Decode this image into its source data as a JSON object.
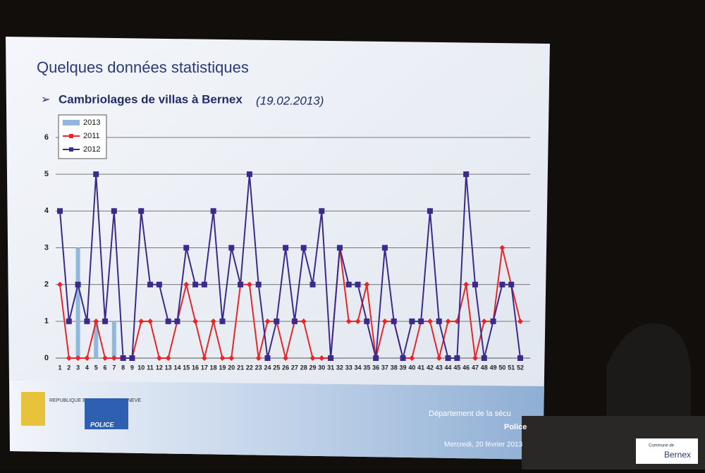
{
  "slide": {
    "heading": "Quelques données statistiques",
    "subtitle": "Cambriolages de villas à Bernex",
    "subtitle_date": "(19.02.2013)",
    "logo_canton": "REPUBLIQUE ET CANTON DE GENEVE",
    "logo_police": "POLICE",
    "footer_department": "Département de la sécu",
    "footer_unit": "Police",
    "footer_date": "Mercredi, 20 février 2013",
    "commune_label": "Commune de",
    "commune_name": "Bernex"
  },
  "chart_data": {
    "type": "line",
    "categories": [
      1,
      2,
      3,
      4,
      5,
      6,
      7,
      8,
      9,
      10,
      11,
      12,
      13,
      14,
      15,
      16,
      17,
      18,
      19,
      20,
      21,
      22,
      23,
      24,
      25,
      26,
      27,
      28,
      29,
      30,
      31,
      32,
      33,
      34,
      35,
      36,
      37,
      38,
      39,
      40,
      41,
      42,
      43,
      44,
      45,
      46,
      47,
      48,
      49,
      50,
      51,
      52
    ],
    "series": [
      {
        "name": "2013",
        "type": "bar",
        "color": "#8fb8dc",
        "values": [
          0,
          0,
          3,
          0,
          1,
          0,
          1,
          null,
          null,
          null,
          null,
          null,
          null,
          null,
          null,
          null,
          null,
          null,
          null,
          null,
          null,
          null,
          null,
          null,
          null,
          null,
          null,
          null,
          null,
          null,
          null,
          null,
          null,
          null,
          null,
          null,
          null,
          null,
          null,
          null,
          null,
          null,
          null,
          null,
          null,
          null,
          null,
          null,
          null,
          null,
          null,
          null
        ]
      },
      {
        "name": "2011",
        "type": "line",
        "color": "#e8262a",
        "values": [
          2,
          0,
          0,
          0,
          1,
          0,
          0,
          0,
          0,
          1,
          1,
          0,
          0,
          1,
          2,
          1,
          0,
          1,
          0,
          0,
          2,
          2,
          0,
          1,
          1,
          0,
          1,
          1,
          0,
          0,
          0,
          3,
          1,
          1,
          2,
          0,
          1,
          1,
          0,
          0,
          1,
          1,
          0,
          1,
          1,
          2,
          0,
          1,
          1,
          3,
          2,
          1
        ]
      },
      {
        "name": "2012",
        "type": "line",
        "color": "#3b2a8c",
        "values": [
          4,
          1,
          2,
          1,
          5,
          1,
          4,
          0,
          0,
          4,
          2,
          2,
          1,
          1,
          3,
          2,
          2,
          4,
          1,
          3,
          2,
          5,
          2,
          0,
          1,
          3,
          1,
          3,
          2,
          4,
          0,
          3,
          2,
          2,
          1,
          0,
          3,
          1,
          0,
          1,
          1,
          4,
          1,
          0,
          0,
          5,
          2,
          0,
          1,
          2,
          2,
          0
        ]
      }
    ],
    "ylim": [
      0,
      6
    ],
    "yticks": [
      0,
      1,
      2,
      3,
      4,
      5,
      6
    ],
    "grid": true
  }
}
